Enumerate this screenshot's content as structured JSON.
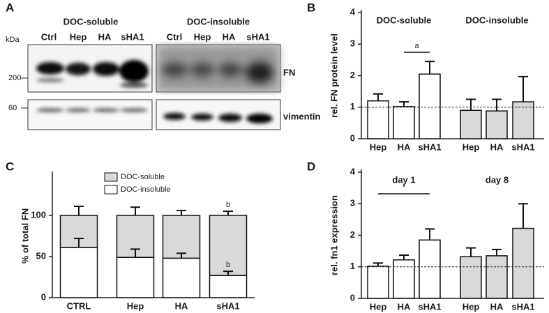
{
  "blot": {
    "panel": "A",
    "unit": "kDa",
    "groups": [
      {
        "name": "DOC-soluble",
        "lanes": [
          "Ctrl",
          "Hep",
          "HA",
          "sHA1"
        ]
      },
      {
        "name": "DOC-insoluble",
        "lanes": [
          "Ctrl",
          "Hep",
          "HA",
          "sHA1"
        ]
      }
    ],
    "bands": [
      {
        "label": "FN",
        "marker": 200
      },
      {
        "label": "vimentin",
        "marker": 60
      }
    ]
  },
  "chart_data": [
    {
      "type": "bar",
      "panel": "B",
      "ylabel": "rel. FN protein level",
      "categories": [
        "Hep",
        "HA",
        "sHA1"
      ],
      "ylim": [
        0,
        4
      ],
      "yticks": [
        0,
        1,
        2,
        3,
        4
      ],
      "reference_line": 1,
      "series": [
        {
          "name": "DOC-soluble",
          "color": "#ffffff",
          "values": [
            1.2,
            1.02,
            2.05
          ],
          "errors": [
            0.22,
            0.15,
            0.4
          ]
        },
        {
          "name": "DOC-insoluble",
          "color": "#d9d9d9",
          "values": [
            0.9,
            0.88,
            1.17
          ],
          "errors": [
            0.35,
            0.37,
            0.8
          ]
        }
      ],
      "annotation": {
        "text": "a",
        "from": "HA",
        "to": "sHA1"
      }
    },
    {
      "type": "stacked_bar",
      "panel": "C",
      "ylabel": "% of total FN",
      "categories": [
        "CTRL",
        "Hep",
        "HA",
        "sHA1"
      ],
      "ylim": [
        0,
        150
      ],
      "yticks": [
        0,
        50,
        100
      ],
      "legend": "top-left",
      "series": [
        {
          "name": "DOC-insoluble",
          "color": "#ffffff",
          "values": [
            61,
            49,
            48,
            27
          ],
          "errors": [
            11,
            10,
            6,
            5
          ],
          "annotations": [
            null,
            null,
            null,
            "b"
          ]
        },
        {
          "name": "DOC-soluble",
          "color": "#d9d9d9",
          "values": [
            39,
            51,
            52,
            73
          ],
          "errors": [
            11,
            10,
            6,
            5
          ],
          "annotations": [
            null,
            null,
            null,
            "b"
          ]
        }
      ]
    },
    {
      "type": "bar",
      "panel": "D",
      "ylabel": "rel. fn1 expression",
      "categories": [
        "Hep",
        "HA",
        "sHA1"
      ],
      "ylim": [
        0,
        4
      ],
      "yticks": [
        0,
        1,
        2,
        3,
        4
      ],
      "reference_line": 1,
      "series": [
        {
          "name": "day 1",
          "color": "#ffffff",
          "values": [
            1.02,
            1.22,
            1.85
          ],
          "errors": [
            0.1,
            0.15,
            0.35
          ]
        },
        {
          "name": "day 8",
          "color": "#d9d9d9",
          "values": [
            1.32,
            1.35,
            2.22
          ],
          "errors": [
            0.28,
            0.2,
            0.78
          ]
        }
      ],
      "annotation": {
        "text": "*",
        "from": "Hep",
        "to": "sHA1"
      }
    }
  ]
}
